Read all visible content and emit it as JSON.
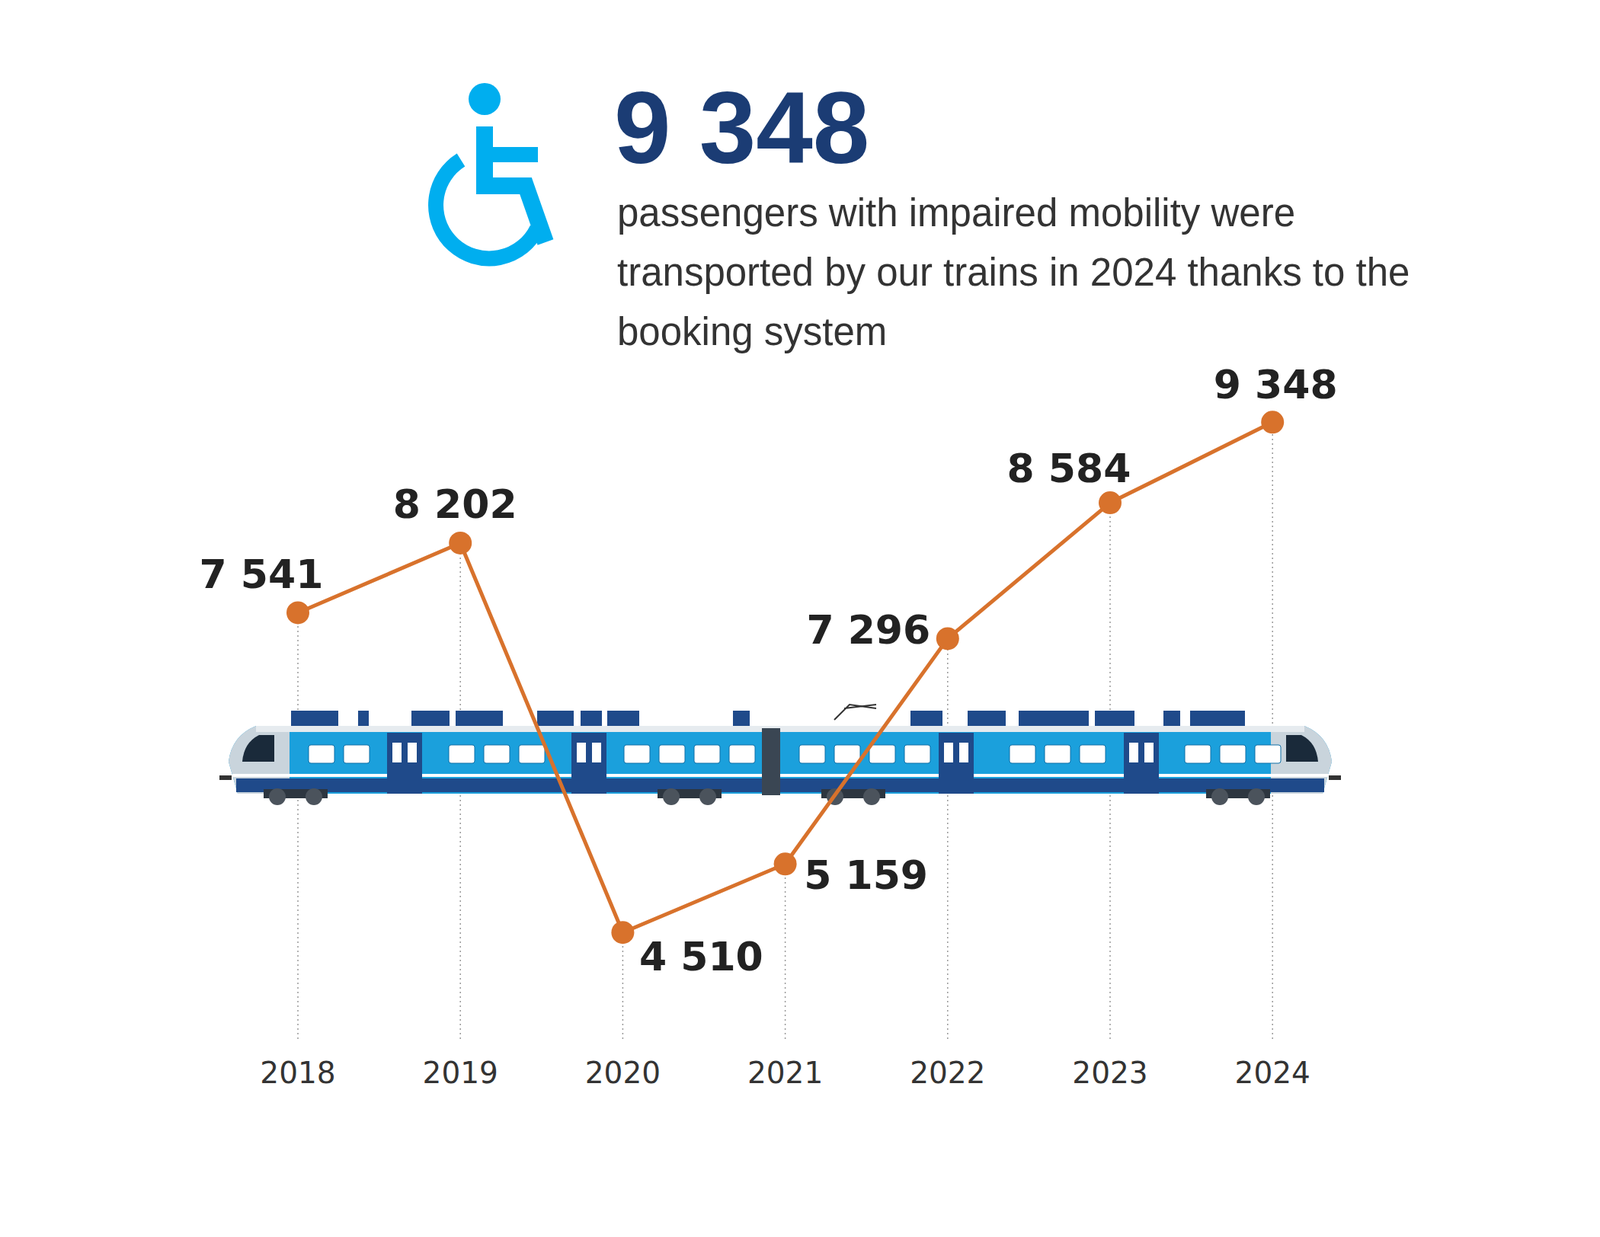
{
  "chart_data": {
    "type": "line",
    "title": "9 348",
    "subtitle": "passengers with impaired mobility were transported by our trains in 2024 thanks to the booking system",
    "categories": [
      "2018",
      "2019",
      "2020",
      "2021",
      "2022",
      "2023",
      "2024"
    ],
    "values": [
      7541,
      8202,
      4510,
      5159,
      7296,
      8584,
      9348
    ],
    "value_labels": [
      "7 541",
      "8 202",
      "4 510",
      "5 159",
      "7 296",
      "8 584",
      "9 348"
    ],
    "color": "#d8722c",
    "marker": "circle",
    "ylim": [
      3500,
      10000
    ],
    "data_labels": true,
    "tick_labels": "x",
    "grid": false
  }
}
